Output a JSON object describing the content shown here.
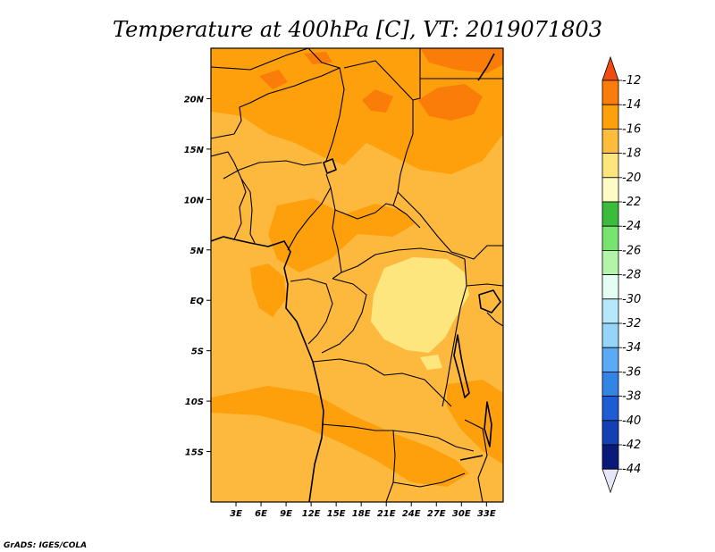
{
  "title": "Temperature at 400hPa [C], VT: 2019071803",
  "credit": "GrADS: IGES/COLA",
  "map": {
    "lon_range": [
      0,
      35
    ],
    "lat_range": [
      -20,
      25
    ],
    "background_color": "#fdb93e"
  },
  "y_ticks": [
    {
      "label": "20N",
      "lat": 20
    },
    {
      "label": "15N",
      "lat": 15
    },
    {
      "label": "10N",
      "lat": 10
    },
    {
      "label": "5N",
      "lat": 5
    },
    {
      "label": "EQ",
      "lat": 0
    },
    {
      "label": "5S",
      "lat": -5
    },
    {
      "label": "10S",
      "lat": -10
    },
    {
      "label": "15S",
      "lat": -15
    }
  ],
  "x_ticks": [
    {
      "label": "3E",
      "lon": 3
    },
    {
      "label": "6E",
      "lon": 6
    },
    {
      "label": "9E",
      "lon": 9
    },
    {
      "label": "12E",
      "lon": 12
    },
    {
      "label": "15E",
      "lon": 15
    },
    {
      "label": "18E",
      "lon": 18
    },
    {
      "label": "21E",
      "lon": 21
    },
    {
      "label": "24E",
      "lon": 24
    },
    {
      "label": "27E",
      "lon": 27
    },
    {
      "label": "30E",
      "lon": 30
    },
    {
      "label": "33E",
      "lon": 33
    }
  ],
  "colorbar": {
    "labels": [
      "-12",
      "-14",
      "-16",
      "-18",
      "-20",
      "-22",
      "-24",
      "-26",
      "-28",
      "-30",
      "-32",
      "-34",
      "-36",
      "-38",
      "-40",
      "-42",
      "-44"
    ],
    "colors": [
      "#f04c10",
      "#fa7d0a",
      "#fea00c",
      "#fcbc3c",
      "#fde67e",
      "#fefcc4",
      "#3cbc3c",
      "#78e470",
      "#b4f4a8",
      "#e4fef4",
      "#b4e8fa",
      "#96d4fa",
      "#5aaaf4",
      "#3484e6",
      "#1e5cd6",
      "#1440b4",
      "#0a1a78"
    ],
    "top_arrow_color": "#f04c10",
    "bottom_arrow_color": "#e6e6fa"
  }
}
